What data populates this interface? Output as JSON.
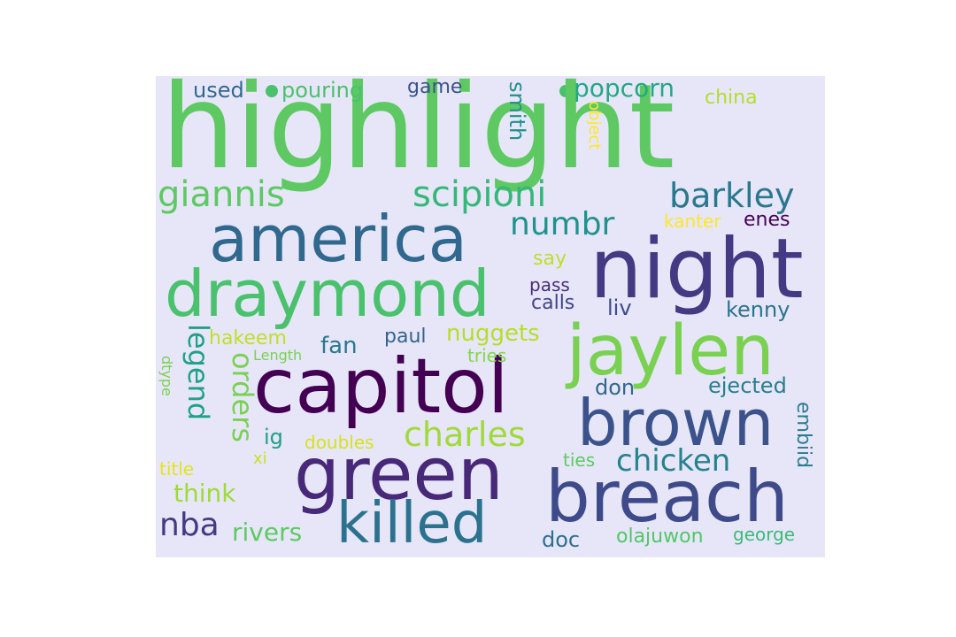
{
  "words": [
    {
      "text": "highlight",
      "color": "#5ec962"
    },
    {
      "text": "america",
      "color": "#31688e"
    },
    {
      "text": "night",
      "color": "#443983"
    },
    {
      "text": "draymond",
      "color": "#4ac16d"
    },
    {
      "text": "jaylen",
      "color": "#7ad151"
    },
    {
      "text": "capitol",
      "color": "#440154"
    },
    {
      "text": "brown",
      "color": "#3b528b"
    },
    {
      "text": "green",
      "color": "#482878"
    },
    {
      "text": "breach",
      "color": "#3e4a89"
    },
    {
      "text": "killed",
      "color": "#2c728e"
    },
    {
      "text": "giannis",
      "color": "#5ec962"
    },
    {
      "text": "scipioni",
      "color": "#35b779"
    },
    {
      "text": "barkley",
      "color": "#2a788e"
    },
    {
      "text": "numbr",
      "color": "#21918c"
    },
    {
      "text": "charles",
      "color": "#a0da39"
    },
    {
      "text": "chicken",
      "color": "#26828e"
    },
    {
      "text": "legend",
      "color": "#1fa187"
    },
    {
      "text": "orders",
      "color": "#7ad151"
    },
    {
      "text": "nba",
      "color": "#443983"
    },
    {
      "text": "rivers",
      "color": "#5ec962"
    },
    {
      "text": "used",
      "color": "#31688e"
    },
    {
      "text": "pouring",
      "color": "#4ac16d"
    },
    {
      "text": "game",
      "color": "#3b528b"
    },
    {
      "text": "popcorn",
      "color": "#22a884"
    },
    {
      "text": "china",
      "color": "#b5de2b"
    },
    {
      "text": "smith",
      "color": "#21918c"
    },
    {
      "text": "object",
      "color": "#fde725"
    },
    {
      "text": "kanter",
      "color": "#fde725"
    },
    {
      "text": "enes",
      "color": "#440154"
    },
    {
      "text": "say",
      "color": "#bddf26"
    },
    {
      "text": "pass",
      "color": "#472d7b"
    },
    {
      "text": "calls",
      "color": "#414487"
    },
    {
      "text": "liv",
      "color": "#3e4a89"
    },
    {
      "text": "kenny",
      "color": "#2c728e"
    },
    {
      "text": "hakeem",
      "color": "#c2df23"
    },
    {
      "text": "fan",
      "color": "#2a788e"
    },
    {
      "text": "paul",
      "color": "#33638d"
    },
    {
      "text": "nuggets",
      "color": "#b5de2b"
    },
    {
      "text": "Length",
      "color": "#7ad151"
    },
    {
      "text": "tries",
      "color": "#86d549"
    },
    {
      "text": "don",
      "color": "#31688e"
    },
    {
      "text": "ejected",
      "color": "#277f8e"
    },
    {
      "text": "dtype",
      "color": "#7ad151"
    },
    {
      "text": "ig",
      "color": "#1f9e89"
    },
    {
      "text": "doubles",
      "color": "#d8e219"
    },
    {
      "text": "xi",
      "color": "#c8e020"
    },
    {
      "text": "title",
      "color": "#e5e419"
    },
    {
      "text": "think",
      "color": "#a0da39"
    },
    {
      "text": "ties",
      "color": "#5ec962"
    },
    {
      "text": "embiid",
      "color": "#287c8e"
    },
    {
      "text": "doc",
      "color": "#2e6e8e"
    },
    {
      "text": "olajuwon",
      "color": "#54c568"
    },
    {
      "text": "george",
      "color": "#3bbb75"
    }
  ]
}
